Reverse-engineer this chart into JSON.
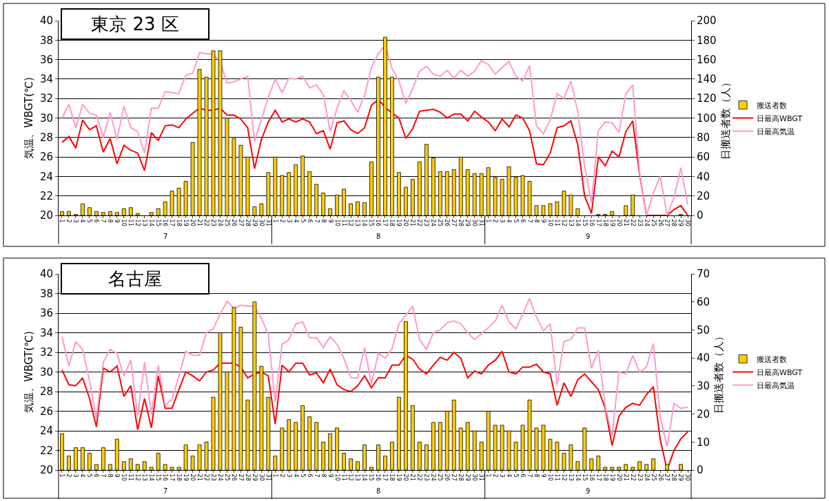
{
  "chart_data": [
    {
      "type": "bar",
      "title": "東京 23 区",
      "ylabel": "気温、WBGT(℃)",
      "y2label": "日搬送者数（人）",
      "annotations": [
        "7",
        "8",
        "9"
      ],
      "categories": [
        "1",
        "2",
        "3",
        "4",
        "5",
        "6",
        "7",
        "8",
        "9",
        "10",
        "11",
        "12",
        "13",
        "14",
        "15",
        "16",
        "17",
        "18",
        "19",
        "20",
        "21",
        "22",
        "23",
        "24",
        "25",
        "26",
        "27",
        "28",
        "29",
        "30",
        "31",
        "1",
        "2",
        "3",
        "4",
        "5",
        "6",
        "7",
        "8",
        "9",
        "10",
        "11",
        "12",
        "13",
        "14",
        "15",
        "16",
        "17",
        "18",
        "19",
        "20",
        "21",
        "22",
        "23",
        "24",
        "25",
        "26",
        "27",
        "28",
        "29",
        "30",
        "31",
        "1",
        "2",
        "3",
        "4",
        "5",
        "6",
        "7",
        "8",
        "9",
        "10",
        "11",
        "12",
        "13",
        "14",
        "15",
        "16",
        "17",
        "18",
        "19",
        "20",
        "21",
        "22",
        "23",
        "24",
        "25",
        "26",
        "27",
        "28",
        "29",
        "30"
      ],
      "series": [
        {
          "name": "搬送者数",
          "axis": "y2",
          "color": "#ffcc00",
          "values": [
            4,
            4,
            1,
            12,
            8,
            4,
            3,
            4,
            3,
            7,
            8,
            2,
            0,
            3,
            7,
            14,
            25,
            28,
            35,
            75,
            150,
            142,
            169,
            169,
            100,
            79,
            72,
            60,
            9,
            12,
            44,
            60,
            41,
            44,
            52,
            61,
            45,
            32,
            23,
            7,
            21,
            27,
            12,
            14,
            13,
            55,
            142,
            183,
            142,
            44,
            29,
            37,
            55,
            73,
            59,
            45,
            45,
            47,
            60,
            47,
            43,
            43,
            49,
            39,
            37,
            50,
            39,
            41,
            35,
            10,
            10,
            12,
            14,
            25,
            21,
            7,
            0,
            0,
            1,
            1,
            4,
            0,
            10,
            21,
            0,
            0,
            0,
            0,
            0,
            0,
            1,
            0
          ]
        },
        {
          "name": "日最高WBGT",
          "type": "line",
          "color": "#ff0000",
          "values": [
            27.5,
            28.1,
            26.9,
            29.8,
            28.8,
            29.2,
            26.5,
            27.9,
            25.3,
            27.2,
            26.7,
            26.4,
            24.6,
            28.5,
            27.7,
            29.2,
            29.3,
            29.0,
            29.9,
            30.5,
            31.0,
            30.8,
            30.8,
            31.0,
            30.3,
            30.3,
            29.9,
            29.0,
            24.8,
            27.8,
            29.6,
            30.8,
            29.6,
            29.9,
            29.6,
            29.9,
            29.6,
            28.4,
            28.7,
            26.8,
            29.5,
            29.7,
            28.8,
            28.4,
            29.0,
            31.3,
            31.9,
            31.1,
            30.5,
            30.0,
            27.9,
            28.9,
            30.7,
            30.8,
            30.9,
            30.6,
            30.0,
            30.4,
            30.4,
            29.7,
            30.7,
            30.1,
            29.6,
            28.7,
            29.9,
            29.1,
            30.3,
            30.0,
            28.7,
            25.3,
            25.2,
            26.4,
            29.0,
            29.2,
            29.7,
            27.3,
            22.0,
            20.2,
            26.0,
            25.1,
            26.6,
            26.0,
            28.6,
            29.7,
            24.2,
            20,
            20,
            20,
            20,
            20.6,
            21.0,
            20
          ]
        },
        {
          "name": "日最高気温",
          "type": "line",
          "color": "#ff99cc",
          "values": [
            30.0,
            31.4,
            29.0,
            31.4,
            30.5,
            30.3,
            28.0,
            30.6,
            27.8,
            31.2,
            29.0,
            28.6,
            26.4,
            31.0,
            31.0,
            32.7,
            32.6,
            32.5,
            34.4,
            34.6,
            36.7,
            36.6,
            36.5,
            35.8,
            33.6,
            33.7,
            34.0,
            34.3,
            27.6,
            29.9,
            32.1,
            34.0,
            32.6,
            34.1,
            34.0,
            34.3,
            33.1,
            33.4,
            32.4,
            28.6,
            31.0,
            32.8,
            31.8,
            30.6,
            32.3,
            35.2,
            36.6,
            37.5,
            35.1,
            33.8,
            31.5,
            33.0,
            34.8,
            35.3,
            34.5,
            34.3,
            34.9,
            34.1,
            34.9,
            34.3,
            34.8,
            35.9,
            35.5,
            34.5,
            35.2,
            35.8,
            34.3,
            33.8,
            35.4,
            29.2,
            28.4,
            29.8,
            32.5,
            32.0,
            33.8,
            30.7,
            25.1,
            21.3,
            28.7,
            29.6,
            29.5,
            28.5,
            32.5,
            33.4,
            24.4,
            20,
            22.3,
            24.0,
            20,
            21.8,
            24.9,
            21.1
          ]
        }
      ],
      "ylim": [
        20,
        40
      ],
      "yticks": [
        20,
        22,
        24,
        26,
        28,
        30,
        32,
        34,
        36,
        38,
        40
      ],
      "y2lim": [
        0,
        200
      ],
      "y2ticks": [
        0,
        20,
        40,
        60,
        80,
        100,
        120,
        140,
        160,
        180,
        200
      ],
      "grid": "y",
      "legend": "right"
    },
    {
      "type": "bar",
      "title": "名古屋",
      "ylabel": "気温、WBGT(℃)",
      "y2label": "日搬送者数（人）",
      "annotations": [
        "7",
        "8",
        "9"
      ],
      "categories": [
        "1",
        "2",
        "3",
        "4",
        "5",
        "6",
        "7",
        "8",
        "9",
        "10",
        "11",
        "12",
        "13",
        "14",
        "15",
        "16",
        "17",
        "18",
        "19",
        "20",
        "21",
        "22",
        "23",
        "24",
        "25",
        "26",
        "27",
        "28",
        "29",
        "30",
        "31",
        "1",
        "2",
        "3",
        "4",
        "5",
        "6",
        "7",
        "8",
        "9",
        "10",
        "11",
        "12",
        "13",
        "14",
        "15",
        "16",
        "17",
        "18",
        "19",
        "20",
        "21",
        "22",
        "23",
        "24",
        "25",
        "26",
        "27",
        "28",
        "29",
        "30",
        "31",
        "1",
        "2",
        "3",
        "4",
        "5",
        "6",
        "7",
        "8",
        "9",
        "10",
        "11",
        "12",
        "13",
        "14",
        "15",
        "16",
        "17",
        "18",
        "19",
        "20",
        "21",
        "22",
        "23",
        "24",
        "25",
        "26",
        "27",
        "28",
        "29",
        "30"
      ],
      "series": [
        {
          "name": "搬送者数",
          "axis": "y2",
          "color": "#ffcc00",
          "values": [
            13,
            5,
            8,
            8,
            6,
            2,
            8,
            2,
            11,
            3,
            4,
            2,
            3,
            1,
            6,
            2,
            1,
            1,
            9,
            5,
            9,
            10,
            26,
            49,
            35,
            58,
            51,
            25,
            60,
            37,
            26,
            5,
            15,
            18,
            17,
            23,
            19,
            17,
            10,
            13,
            15,
            6,
            4,
            3,
            9,
            1,
            9,
            5,
            10,
            26,
            53,
            23,
            10,
            9,
            17,
            17,
            21,
            25,
            15,
            17,
            14,
            10,
            21,
            16,
            16,
            14,
            10,
            16,
            25,
            15,
            16,
            11,
            10,
            6,
            9,
            3,
            15,
            4,
            5,
            1,
            1,
            1,
            2,
            1,
            3,
            2,
            4,
            0,
            2,
            0,
            2,
            0
          ]
        },
        {
          "name": "日最高WBGT",
          "type": "line",
          "color": "#ff0000",
          "values": [
            30.2,
            28.7,
            28.6,
            29.4,
            27.3,
            24.4,
            30.4,
            30.0,
            30.6,
            27.5,
            28.6,
            24.1,
            27.3,
            24.3,
            29.6,
            26.3,
            26.3,
            28.2,
            30.0,
            29.6,
            29.1,
            30.0,
            30.2,
            30.9,
            30.9,
            30.9,
            30.5,
            29.4,
            29.8,
            30.0,
            29.6,
            24.7,
            30.7,
            30.0,
            30.9,
            30.9,
            29.7,
            29.9,
            28.9,
            30.3,
            28.7,
            28.2,
            28.0,
            28.6,
            29.6,
            28.4,
            29.4,
            29.4,
            30.7,
            30.7,
            31.7,
            31.3,
            30.3,
            29.8,
            30.7,
            31.5,
            31.2,
            32.0,
            31.4,
            29.4,
            30.1,
            29.8,
            30.7,
            31.2,
            32.1,
            30.0,
            29.8,
            30.5,
            30.5,
            30.8,
            30.0,
            29.8,
            26.6,
            28.9,
            27.5,
            29.2,
            29.8,
            29.0,
            28.2,
            26.3,
            22.5,
            25.5,
            26.4,
            26.8,
            26.6,
            27.7,
            28.5,
            23.1,
            20.0,
            22.0,
            23.2,
            23.9
          ]
        },
        {
          "name": "日最高気温",
          "type": "line",
          "color": "#ff99cc",
          "values": [
            33.6,
            30.6,
            33.1,
            32.3,
            29.1,
            25.3,
            31.0,
            32.3,
            31.9,
            29.6,
            31.2,
            25.5,
            31.0,
            25.7,
            30.7,
            26.6,
            27.2,
            29.6,
            32.1,
            31.7,
            31.7,
            34.0,
            34.4,
            35.9,
            37.2,
            36.5,
            36.8,
            36.7,
            36.7,
            35.5,
            33.8,
            26.9,
            32.8,
            33.3,
            34.9,
            35.1,
            33.5,
            33.5,
            32.5,
            33.6,
            32.8,
            31.4,
            29.4,
            29.4,
            32.5,
            28.8,
            31.9,
            31.4,
            32.4,
            34.9,
            35.8,
            36.7,
            33.3,
            32.3,
            34.0,
            34.3,
            35.0,
            35.2,
            34.9,
            34.0,
            33.3,
            33.9,
            34.5,
            35.2,
            36.8,
            35.1,
            34.4,
            35.9,
            37.5,
            35.6,
            34.2,
            34.9,
            28.7,
            33.1,
            33.3,
            34.5,
            34.5,
            30.4,
            32.2,
            26.5,
            23.5,
            30.0,
            29.8,
            31.7,
            30.0,
            30.5,
            32.9,
            25.4,
            22.4,
            26.8,
            26.3,
            26.4
          ]
        }
      ],
      "ylim": [
        20,
        40
      ],
      "yticks": [
        20,
        22,
        24,
        26,
        28,
        30,
        32,
        34,
        36,
        38,
        40
      ],
      "y2lim": [
        0,
        70
      ],
      "y2ticks": [
        0,
        10,
        20,
        30,
        40,
        50,
        60,
        70
      ],
      "grid": "y",
      "legend": "right"
    }
  ]
}
